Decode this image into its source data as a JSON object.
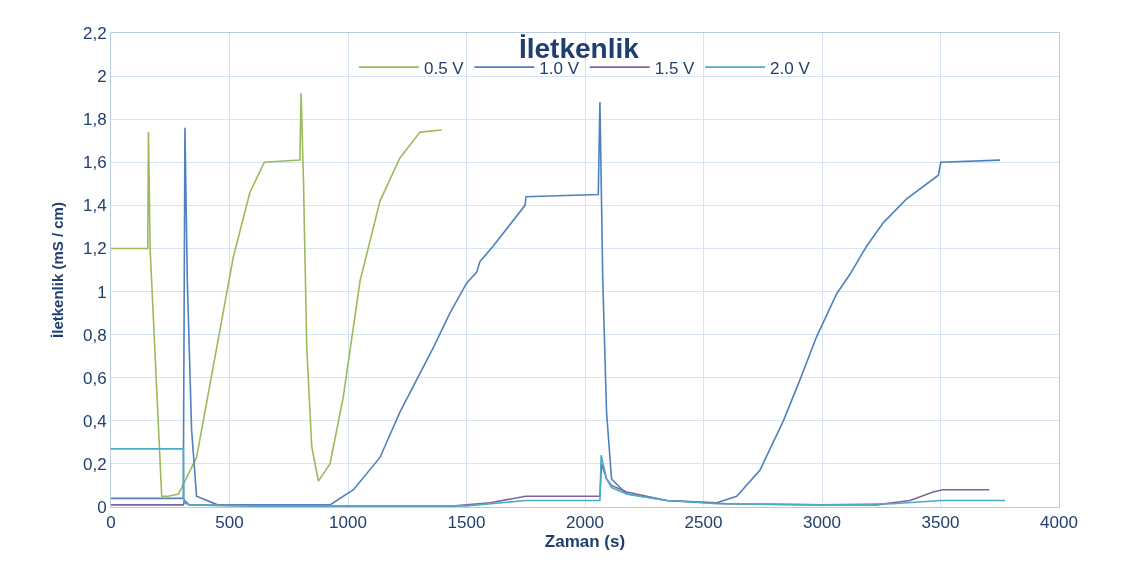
{
  "chart_data": {
    "type": "line",
    "title": "İletkenlik",
    "xlabel": "Zaman (s)",
    "ylabel": "İletkenlik (mS / cm)",
    "xlim": [
      0,
      4000
    ],
    "xticks": [
      0,
      500,
      1000,
      1500,
      2000,
      2500,
      3000,
      3500,
      4000
    ],
    "ylim": [
      0,
      2.2
    ],
    "yticks": [
      {
        "value": 0,
        "label": "0"
      },
      {
        "value": 0.2,
        "label": "0,2"
      },
      {
        "value": 0.4,
        "label": "0,4"
      },
      {
        "value": 0.6,
        "label": "0,6"
      },
      {
        "value": 0.8,
        "label": "0,8"
      },
      {
        "value": 1,
        "label": "1"
      },
      {
        "value": 1.2,
        "label": "1,2"
      },
      {
        "value": 1.4,
        "label": "1,4"
      },
      {
        "value": 1.6,
        "label": "1,6"
      },
      {
        "value": 1.8,
        "label": "1,8"
      },
      {
        "value": 2,
        "label": "2"
      },
      {
        "value": 2.2,
        "label": "2,2"
      }
    ],
    "grid": true,
    "legend": "top",
    "marker": "none",
    "line_style": "solid",
    "series": [
      {
        "name": "0.5 V",
        "color": "#9bbb59",
        "x": [
          0,
          155,
          158,
          160,
          165,
          214,
          241,
          285,
          361,
          446,
          516,
          586,
          647,
          797,
          802,
          812,
          826,
          847,
          875,
          924,
          980,
          1051,
          1135,
          1219,
          1304,
          1395
        ],
        "values": [
          1.2,
          1.2,
          1.74,
          1.6,
          1.2,
          0.05,
          0.05,
          0.06,
          0.23,
          0.74,
          1.16,
          1.46,
          1.6,
          1.61,
          1.92,
          1.52,
          0.74,
          0.28,
          0.12,
          0.2,
          0.51,
          1.05,
          1.42,
          1.62,
          1.74,
          1.75
        ]
      },
      {
        "name": "1.0 V",
        "color": "#4f81bd",
        "x": [
          0,
          305,
          312,
          322,
          340,
          361,
          450,
          800,
          924,
          1023,
          1135,
          1219,
          1360,
          1430,
          1501,
          1543,
          1557,
          1612,
          1747,
          1751,
          2056,
          2063,
          2075,
          2091,
          2112,
          2176,
          2345,
          2556,
          2640,
          2738,
          2837,
          2907,
          2977,
          3062,
          3118,
          3188,
          3259,
          3357,
          3491,
          3501,
          3751
        ],
        "values": [
          0.04,
          0.04,
          1.76,
          1.05,
          0.36,
          0.05,
          0.01,
          0.01,
          0.01,
          0.08,
          0.23,
          0.44,
          0.74,
          0.9,
          1.04,
          1.09,
          1.14,
          1.21,
          1.4,
          1.44,
          1.45,
          1.88,
          1.05,
          0.44,
          0.13,
          0.06,
          0.03,
          0.02,
          0.05,
          0.17,
          0.4,
          0.59,
          0.79,
          0.99,
          1.08,
          1.21,
          1.32,
          1.43,
          1.54,
          1.6,
          1.61
        ]
      },
      {
        "name": "1.5 V",
        "color": "#8064a2",
        "x": [
          0,
          305,
          310,
          330,
          600,
          1450,
          1600,
          1750,
          2063,
          2070,
          2091,
          2112,
          2176,
          2345,
          2600,
          3000,
          3230,
          3371,
          3469,
          3509,
          3706
        ],
        "values": [
          0.01,
          0.01,
          0.03,
          0.01,
          0.005,
          0.005,
          0.02,
          0.05,
          0.05,
          0.2,
          0.13,
          0.1,
          0.07,
          0.03,
          0.015,
          0.01,
          0.01,
          0.03,
          0.07,
          0.08,
          0.08
        ]
      },
      {
        "name": "2.0 V",
        "color": "#4bacc6",
        "x": [
          0,
          305,
          308,
          330,
          600,
          1500,
          1750,
          2063,
          2068,
          2091,
          2112,
          2176,
          2345,
          2556,
          3000,
          3300,
          3500,
          3772
        ],
        "values": [
          0.27,
          0.27,
          0.02,
          0.01,
          0.005,
          0.005,
          0.03,
          0.03,
          0.24,
          0.13,
          0.09,
          0.06,
          0.03,
          0.015,
          0.01,
          0.015,
          0.03,
          0.03
        ]
      }
    ]
  }
}
